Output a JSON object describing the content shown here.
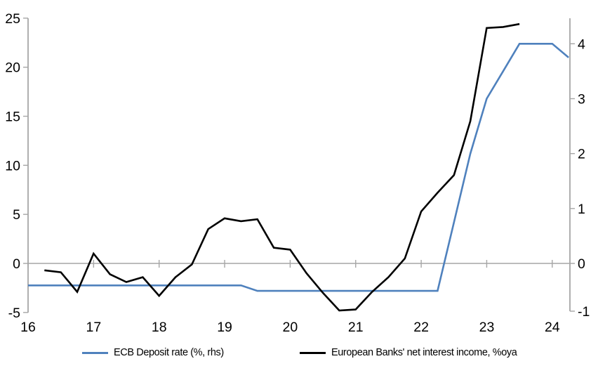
{
  "chart_data": {
    "type": "line",
    "title": "",
    "x_axis": {
      "tick_labels": [
        16,
        17,
        18,
        19,
        20,
        21,
        22,
        23,
        24
      ],
      "range": [
        16,
        24.27
      ]
    },
    "left_axis": {
      "tick_labels": [
        25,
        20,
        15,
        10,
        5,
        0,
        -5
      ],
      "range": [
        -5,
        25
      ]
    },
    "right_axis": {
      "tick_labels": [
        4,
        3,
        2,
        1,
        0,
        -1
      ],
      "range": [
        -0.9,
        4.46
      ]
    },
    "grid": "zero-line-only",
    "legend_position": "bottom",
    "series": [
      {
        "name": "ECB Deposit rate (%, rhs)",
        "axis": "right",
        "color": "#4f81bd",
        "x": [
          16.0,
          19.25,
          19.5,
          22.25,
          22.5,
          22.75,
          23.0,
          23.25,
          23.5,
          24.0,
          24.25
        ],
        "y": [
          -0.4,
          -0.4,
          -0.5,
          -0.5,
          0.75,
          2.0,
          3.0,
          3.5,
          4.0,
          4.0,
          3.75
        ]
      },
      {
        "name": "European Banks' net interest income, %oya",
        "axis": "left",
        "color": "#000000",
        "x": [
          16.25,
          16.5,
          16.75,
          17.0,
          17.25,
          17.5,
          17.75,
          18.0,
          18.25,
          18.5,
          18.75,
          19.0,
          19.25,
          19.5,
          19.75,
          20.0,
          20.25,
          20.5,
          20.75,
          21.0,
          21.25,
          21.5,
          21.75,
          22.0,
          22.25,
          22.5,
          22.75,
          23.0,
          23.25,
          23.5
        ],
        "y": [
          -0.7,
          -0.9,
          -2.9,
          1.0,
          -1.1,
          -1.9,
          -1.4,
          -3.3,
          -1.4,
          -0.1,
          3.5,
          4.6,
          4.3,
          4.5,
          1.6,
          1.4,
          -1.0,
          -3.0,
          -4.8,
          -4.7,
          -2.9,
          -1.4,
          0.5,
          5.3,
          7.2,
          9.0,
          14.5,
          24.0,
          24.1,
          24.4
        ]
      }
    ]
  },
  "colors": {
    "axis": "#a6a6a6",
    "label": "#000000",
    "nii_line": "#000000",
    "ecb_line": "#4f81bd"
  }
}
